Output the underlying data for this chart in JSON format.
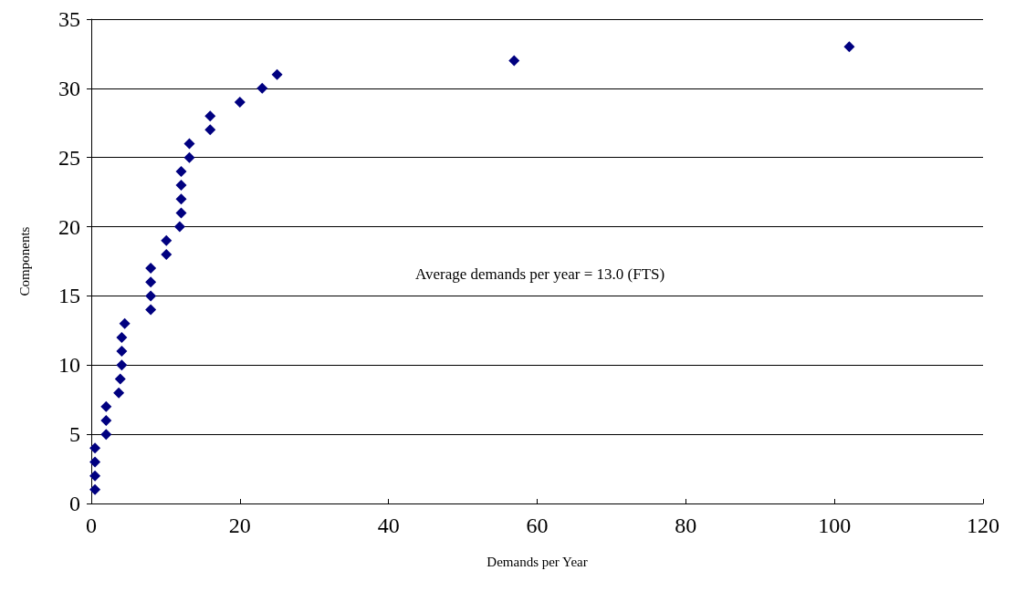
{
  "chart_data": {
    "type": "scatter",
    "xlabel": "Demands per Year",
    "ylabel": "Components",
    "x": [
      0.5,
      0.5,
      0.5,
      0.5,
      2.0,
      2.0,
      2.0,
      3.7,
      3.9,
      4.1,
      4.1,
      4.1,
      4.5,
      8.0,
      8.0,
      8.0,
      8.0,
      10.1,
      10.1,
      11.9,
      12.1,
      12.1,
      12.1,
      12.1,
      13.2,
      13.2,
      16.0,
      16.0,
      20.0,
      23.0,
      25.0,
      56.9,
      102
    ],
    "values": [
      1,
      2,
      3,
      4,
      5,
      6,
      7,
      8,
      9,
      10,
      11,
      12,
      13,
      14,
      15,
      16,
      17,
      18,
      19,
      20,
      21,
      22,
      23,
      24,
      25,
      26,
      27,
      28,
      29,
      30,
      31,
      32,
      33
    ],
    "color": "#000080",
    "marker": "diamond",
    "grid": "y",
    "xlim": [
      0,
      120
    ],
    "xticks": [
      0,
      20,
      40,
      60,
      80,
      100,
      120
    ],
    "ylim": [
      0,
      35
    ],
    "yticks": [
      0,
      5,
      10,
      15,
      20,
      25,
      30,
      35
    ],
    "annotations": [
      "Average demands per year = 13.0 (FTS)"
    ]
  }
}
